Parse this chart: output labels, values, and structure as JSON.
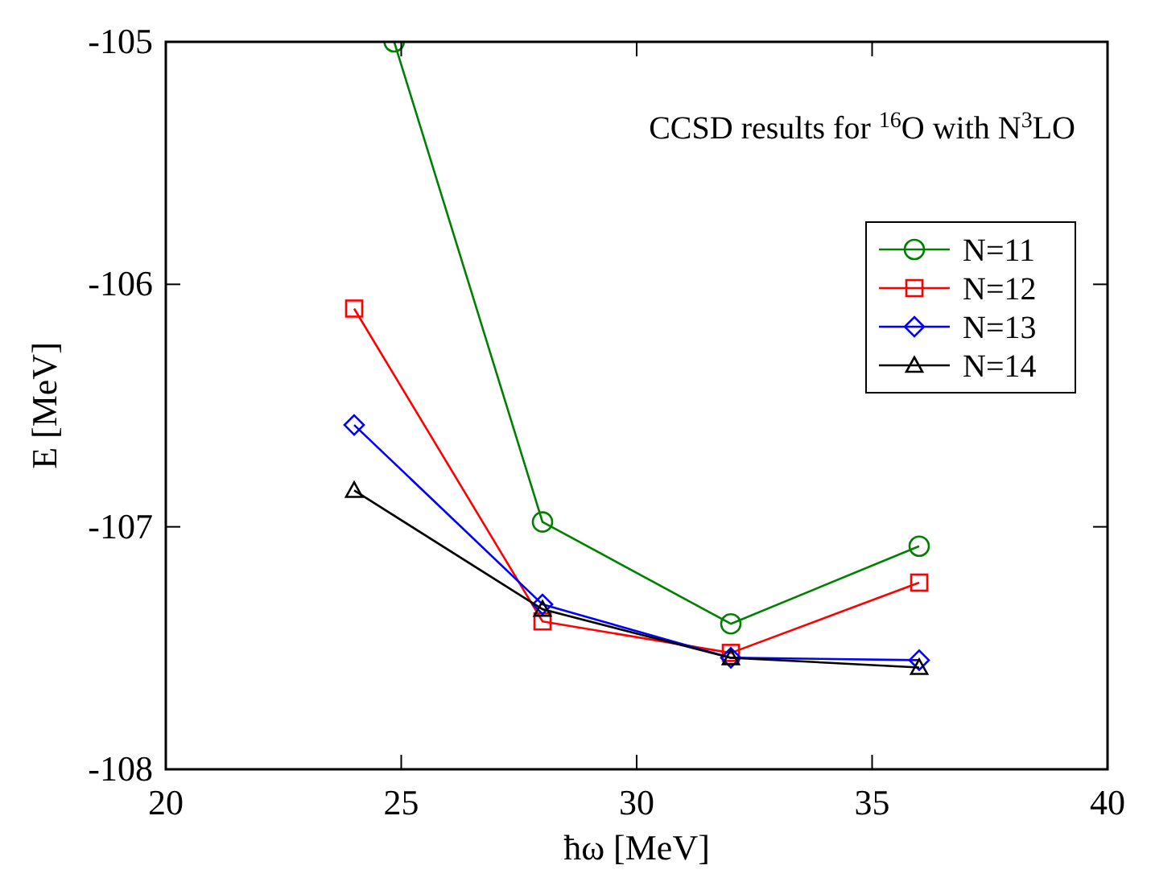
{
  "chart_data": {
    "type": "line",
    "xlabel": "ħω [MeV]",
    "ylabel": "E [MeV]",
    "annotations": [
      "CCSD results for $^{16}$O with N$^{3}$LO"
    ],
    "x": [
      24,
      28,
      32,
      36
    ],
    "xlim": [
      20,
      40
    ],
    "xticks": [
      20,
      25,
      30,
      35,
      40
    ],
    "ylim": [
      -108,
      -105
    ],
    "yticks": [
      -108,
      -107,
      -106,
      -105
    ],
    "grid": false,
    "legend": "top right",
    "series": [
      {
        "name": "N=11",
        "color": "#008000",
        "marker": "circle",
        "x": [
          24.85,
          28,
          32,
          36
        ],
        "values": [
          -105,
          -106.98,
          -107.4,
          -107.08
        ]
      },
      {
        "name": "N=12",
        "color": "#ff0000",
        "marker": "square",
        "values": [
          -106.1,
          -107.39,
          -107.52,
          -107.23
        ]
      },
      {
        "name": "N=13",
        "color": "#0000ff",
        "marker": "diamond",
        "values": [
          -106.58,
          -107.32,
          -107.54,
          -107.55
        ]
      },
      {
        "name": "N=14",
        "color": "#000000",
        "marker": "triangle",
        "values": [
          -106.85,
          -107.34,
          -107.54,
          -107.58
        ]
      }
    ]
  }
}
